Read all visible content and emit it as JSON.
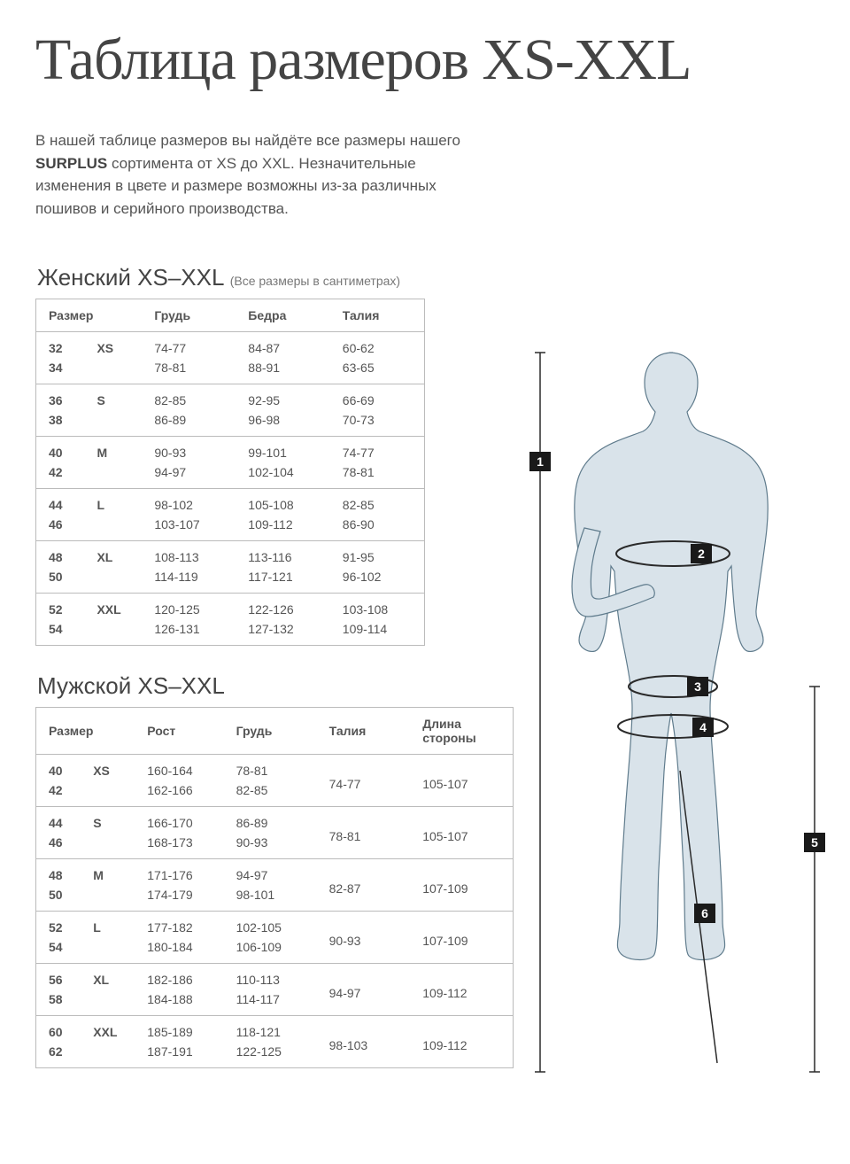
{
  "title": "Таблица размеров XS-XXL",
  "intro_prefix": "В нашей таблице размеров вы найдёте все размеры нашего ",
  "intro_brand": "SURPLUS",
  "intro_suffix": " сортимента от XS до XXL. Незначительные изменения в цвете и размере возможны из-за различных пошивов и серийного производства.",
  "women": {
    "heading": "Женский XS–XXL",
    "note": "(Все размеры в сантиметрах)",
    "columns": [
      "Размер",
      "Грудь",
      "Бедра",
      "Талия"
    ],
    "groups": [
      {
        "code": "XS",
        "rows": [
          {
            "n": "32",
            "v": [
              "74-77",
              "84-87",
              "60-62"
            ]
          },
          {
            "n": "34",
            "v": [
              "78-81",
              "88-91",
              "63-65"
            ]
          }
        ]
      },
      {
        "code": "S",
        "rows": [
          {
            "n": "36",
            "v": [
              "82-85",
              "92-95",
              "66-69"
            ]
          },
          {
            "n": "38",
            "v": [
              "86-89",
              "96-98",
              "70-73"
            ]
          }
        ]
      },
      {
        "code": "M",
        "rows": [
          {
            "n": "40",
            "v": [
              "90-93",
              "99-101",
              "74-77"
            ]
          },
          {
            "n": "42",
            "v": [
              "94-97",
              "102-104",
              "78-81"
            ]
          }
        ]
      },
      {
        "code": "L",
        "rows": [
          {
            "n": "44",
            "v": [
              "98-102",
              "105-108",
              "82-85"
            ]
          },
          {
            "n": "46",
            "v": [
              "103-107",
              "109-112",
              "86-90"
            ]
          }
        ]
      },
      {
        "code": "XL",
        "rows": [
          {
            "n": "48",
            "v": [
              "108-113",
              "113-116",
              "91-95"
            ]
          },
          {
            "n": "50",
            "v": [
              "114-119",
              "117-121",
              "96-102"
            ]
          }
        ]
      },
      {
        "code": "XXL",
        "rows": [
          {
            "n": "52",
            "v": [
              "120-125",
              "122-126",
              "103-108"
            ]
          },
          {
            "n": "54",
            "v": [
              "126-131",
              "127-132",
              "109-114"
            ]
          }
        ]
      }
    ]
  },
  "men": {
    "heading": "Мужской XS–XXL",
    "columns": [
      "Размер",
      "Рост",
      "Грудь",
      "Талия",
      "Длина стороны"
    ],
    "groups": [
      {
        "code": "XS",
        "rows": [
          {
            "n": "40",
            "v": [
              "160-164",
              "78-81",
              "",
              ""
            ]
          },
          {
            "n": "42",
            "v": [
              "162-166",
              "82-85",
              "74-77",
              "105-107"
            ]
          }
        ]
      },
      {
        "code": "S",
        "rows": [
          {
            "n": "44",
            "v": [
              "166-170",
              "86-89",
              "",
              ""
            ]
          },
          {
            "n": "46",
            "v": [
              "168-173",
              "90-93",
              "78-81",
              "105-107"
            ]
          }
        ]
      },
      {
        "code": "M",
        "rows": [
          {
            "n": "48",
            "v": [
              "171-176",
              "94-97",
              "",
              ""
            ]
          },
          {
            "n": "50",
            "v": [
              "174-179",
              "98-101",
              "82-87",
              "107-109"
            ]
          }
        ]
      },
      {
        "code": "L",
        "rows": [
          {
            "n": "52",
            "v": [
              "177-182",
              "102-105",
              "",
              ""
            ]
          },
          {
            "n": "54",
            "v": [
              "180-184",
              "106-109",
              "90-93",
              "107-109"
            ]
          }
        ]
      },
      {
        "code": "XL",
        "rows": [
          {
            "n": "56",
            "v": [
              "182-186",
              "110-113",
              "",
              ""
            ]
          },
          {
            "n": "58",
            "v": [
              "184-188",
              "114-117",
              "94-97",
              "109-112"
            ]
          }
        ]
      },
      {
        "code": "XXL",
        "rows": [
          {
            "n": "60",
            "v": [
              "185-189",
              "118-121",
              "",
              ""
            ]
          },
          {
            "n": "62",
            "v": [
              "187-191",
              "122-125",
              "98-103",
              "109-112"
            ]
          }
        ]
      }
    ]
  },
  "figure": {
    "badges": [
      "1",
      "2",
      "3",
      "4",
      "5",
      "6"
    ],
    "colors": {
      "silhouette_fill": "#d9e3ea",
      "silhouette_stroke": "#5f7b8c",
      "badge_fill": "#1a1a1a",
      "badge_text": "#ffffff",
      "guide": "#2a2a2a"
    }
  }
}
